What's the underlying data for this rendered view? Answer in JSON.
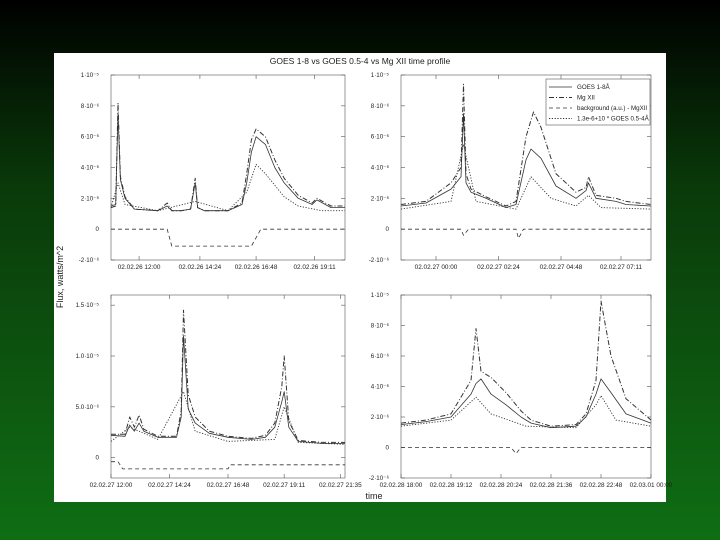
{
  "figure": {
    "title": "GOES 1-8 vs GOES 0.5-4 vs Mg XII time profile",
    "ylabel": "Flux, watts/m^2",
    "xlabel": "time"
  },
  "legend": {
    "entries": [
      {
        "label": "GOES 1-8Å",
        "style": "solid"
      },
      {
        "label": "Mg XII",
        "style": "dashdot"
      },
      {
        "label": "background (a.u.) - MgXII",
        "style": "dashed"
      },
      {
        "label": "1.3e-6+10 * GOES 0.5-4Å",
        "style": "dotted"
      }
    ]
  },
  "colors": {
    "line": "#333333",
    "axis": "#555555",
    "background_top": "#000000",
    "background_bottom": "#0f6e14"
  },
  "chart_data": [
    {
      "type": "line",
      "panel": "top-left",
      "ylim": [
        -2e-06,
        1e-05
      ],
      "ytick_labels": [
        "1·10⁻⁵",
        "8·10⁻⁶",
        "6·10⁻⁶",
        "4·10⁻⁶",
        "2·10⁻⁶",
        "0",
        "-2·10⁻⁶"
      ],
      "ytick_values": [
        1e-05,
        8e-06,
        6e-06,
        4e-06,
        2e-06,
        0,
        -2e-06
      ],
      "xlim": [
        0,
        1
      ],
      "xtick_labels": [
        "02.02.26 12:00",
        "02.02.26 14:24",
        "02.02.26 16:48",
        "02.02.26 19:11"
      ],
      "xtick_values": [
        0.12,
        0.38,
        0.62,
        0.87
      ],
      "series": [
        {
          "style": "solid",
          "x": [
            0,
            0.02,
            0.03,
            0.04,
            0.06,
            0.1,
            0.2,
            0.24,
            0.26,
            0.3,
            0.34,
            0.36,
            0.37,
            0.4,
            0.5,
            0.56,
            0.58,
            0.6,
            0.62,
            0.66,
            0.7,
            0.74,
            0.8,
            0.86,
            0.88,
            0.94,
            1.0
          ],
          "y": [
            1.5e-06,
            1.6e-06,
            7.5e-06,
            3.2e-06,
            2e-06,
            1.3e-06,
            1.2e-06,
            1.5e-06,
            1.2e-06,
            1.2e-06,
            1.3e-06,
            3e-06,
            1.4e-06,
            1.2e-06,
            1.2e-06,
            1.6e-06,
            3e-06,
            5e-06,
            6e-06,
            5.5e-06,
            4e-06,
            3e-06,
            2e-06,
            1.6e-06,
            1.9e-06,
            1.4e-06,
            1.4e-06
          ]
        },
        {
          "style": "dashdot",
          "x": [
            0,
            0.02,
            0.03,
            0.04,
            0.06,
            0.1,
            0.2,
            0.24,
            0.26,
            0.3,
            0.34,
            0.36,
            0.37,
            0.4,
            0.5,
            0.56,
            0.58,
            0.6,
            0.62,
            0.66,
            0.7,
            0.74,
            0.8,
            0.86,
            0.88,
            0.94,
            1.0
          ],
          "y": [
            1.4e-06,
            1.5e-06,
            8.2e-06,
            3.4e-06,
            2.1e-06,
            1.3e-06,
            1.2e-06,
            1.7e-06,
            1.2e-06,
            1.2e-06,
            1.3e-06,
            3.3e-06,
            1.4e-06,
            1.2e-06,
            1.2e-06,
            1.7e-06,
            3.6e-06,
            5.8e-06,
            6.5e-06,
            6e-06,
            4.5e-06,
            3.3e-06,
            2.2e-06,
            1.7e-06,
            2e-06,
            1.5e-06,
            1.5e-06
          ]
        },
        {
          "style": "dotted",
          "x": [
            0,
            0.03,
            0.06,
            0.2,
            0.36,
            0.5,
            0.58,
            0.62,
            0.66,
            0.74,
            0.8,
            0.9,
            1.0
          ],
          "y": [
            1.4e-06,
            3e-06,
            1.6e-06,
            1.2e-06,
            1.8e-06,
            1.2e-06,
            2.4e-06,
            4.2e-06,
            3.6e-06,
            2.1e-06,
            1.5e-06,
            1.2e-06,
            1.2e-06
          ]
        },
        {
          "style": "dashed",
          "x": [
            0,
            0.24,
            0.26,
            0.6,
            0.64,
            1.0
          ],
          "y": [
            0,
            0,
            -1.1e-06,
            -1.1e-06,
            0,
            0
          ]
        }
      ]
    },
    {
      "type": "line",
      "panel": "top-right",
      "ylim": [
        -2e-06,
        1e-05
      ],
      "ytick_labels": [
        "1·10⁻⁵",
        "8·10⁻⁶",
        "6·10⁻⁶",
        "4·10⁻⁶",
        "2·10⁻⁶",
        "0",
        "-2·10⁻⁶"
      ],
      "ytick_values": [
        1e-05,
        8e-06,
        6e-06,
        4e-06,
        2e-06,
        0,
        -2e-06
      ],
      "xlim": [
        0,
        1
      ],
      "xtick_labels": [
        "02.02.27 00:00",
        "02.02.27 02:24",
        "02.02.27 04:48",
        "02.02.27 07:11"
      ],
      "xtick_values": [
        0.14,
        0.39,
        0.64,
        0.88
      ],
      "series": [
        {
          "style": "solid",
          "x": [
            0,
            0.1,
            0.2,
            0.24,
            0.25,
            0.26,
            0.28,
            0.34,
            0.42,
            0.46,
            0.5,
            0.52,
            0.56,
            0.62,
            0.7,
            0.74,
            0.75,
            0.78,
            0.86,
            0.9,
            1.0
          ],
          "y": [
            1.5e-06,
            1.7e-06,
            2.6e-06,
            3.4e-06,
            7.5e-06,
            3e-06,
            2.4e-06,
            2e-06,
            1.4e-06,
            1.6e-06,
            4.5e-06,
            5.2e-06,
            4.6e-06,
            2.8e-06,
            2e-06,
            2.5e-06,
            3e-06,
            2e-06,
            1.8e-06,
            1.6e-06,
            1.5e-06
          ]
        },
        {
          "style": "dashdot",
          "x": [
            0,
            0.1,
            0.2,
            0.24,
            0.25,
            0.26,
            0.28,
            0.34,
            0.42,
            0.46,
            0.5,
            0.53,
            0.56,
            0.62,
            0.7,
            0.74,
            0.75,
            0.78,
            0.86,
            0.9,
            1.0
          ],
          "y": [
            1.6e-06,
            1.8e-06,
            3e-06,
            4e-06,
            9.4e-06,
            3.6e-06,
            2.6e-06,
            2.1e-06,
            1.5e-06,
            1.8e-06,
            6e-06,
            7.6e-06,
            6.6e-06,
            3.6e-06,
            2.4e-06,
            2.7e-06,
            3.4e-06,
            2.2e-06,
            2e-06,
            1.8e-06,
            1.6e-06
          ]
        },
        {
          "style": "dotted",
          "x": [
            0,
            0.2,
            0.25,
            0.3,
            0.46,
            0.52,
            0.6,
            0.7,
            0.75,
            0.8,
            1.0
          ],
          "y": [
            1.3e-06,
            1.8e-06,
            5.5e-06,
            1.8e-06,
            1.3e-06,
            3.4e-06,
            2e-06,
            1.5e-06,
            2.2e-06,
            1.4e-06,
            1.3e-06
          ]
        },
        {
          "style": "dashed",
          "x": [
            0,
            0.24,
            0.25,
            0.27,
            0.46,
            0.47,
            0.49,
            1.0
          ],
          "y": [
            0,
            0,
            -4e-07,
            0,
            0,
            -6e-07,
            0,
            0
          ]
        }
      ]
    },
    {
      "type": "line",
      "panel": "bottom-left",
      "ylim": [
        -2e-06,
        1.6e-05
      ],
      "ytick_labels": [
        "1.5·10⁻⁵",
        "1.0·10⁻⁵",
        "5.0·10⁻⁶",
        "0"
      ],
      "ytick_values": [
        1.5e-05,
        1e-05,
        5e-06,
        0
      ],
      "xlim": [
        0,
        1
      ],
      "xtick_labels": [
        "02.02.27 12:00",
        "02.02.27 14:24",
        "02.02.27 16:48",
        "02.02.27 19:11",
        "02.02.27 21:35"
      ],
      "xtick_values": [
        0.0,
        0.25,
        0.5,
        0.74,
        0.98
      ],
      "series": [
        {
          "style": "solid",
          "x": [
            0,
            0.06,
            0.08,
            0.1,
            0.12,
            0.14,
            0.2,
            0.28,
            0.3,
            0.31,
            0.33,
            0.36,
            0.42,
            0.5,
            0.6,
            0.66,
            0.7,
            0.73,
            0.74,
            0.76,
            0.8,
            0.9,
            1.0
          ],
          "y": [
            2.2e-06,
            2.1e-06,
            3.2e-06,
            2.6e-06,
            3.4e-06,
            2.6e-06,
            2e-06,
            2e-06,
            4e-06,
            1.2e-05,
            4.8e-06,
            3.4e-06,
            2.4e-06,
            2e-06,
            1.8e-06,
            2e-06,
            3e-06,
            5.5e-06,
            6.5e-06,
            3e-06,
            1.6e-06,
            1.4e-06,
            1.4e-06
          ]
        },
        {
          "style": "dashdot",
          "x": [
            0,
            0.06,
            0.08,
            0.1,
            0.12,
            0.14,
            0.2,
            0.28,
            0.3,
            0.31,
            0.33,
            0.36,
            0.42,
            0.5,
            0.6,
            0.66,
            0.7,
            0.73,
            0.74,
            0.76,
            0.8,
            0.9,
            1.0
          ],
          "y": [
            2.3e-06,
            2.3e-06,
            4e-06,
            3e-06,
            4.2e-06,
            2.8e-06,
            2.1e-06,
            2.1e-06,
            4.6e-06,
            1.45e-05,
            6.2e-06,
            4e-06,
            2.6e-06,
            2.1e-06,
            1.9e-06,
            2.2e-06,
            3.4e-06,
            7e-06,
            1e-05,
            3.6e-06,
            1.7e-06,
            1.5e-06,
            1.5e-06
          ]
        },
        {
          "style": "dotted",
          "x": [
            0,
            0.08,
            0.12,
            0.2,
            0.31,
            0.36,
            0.5,
            0.7,
            0.74,
            0.8,
            1.0
          ],
          "y": [
            1.6e-06,
            3e-06,
            2.6e-06,
            1.8e-06,
            6.5e-06,
            2.6e-06,
            1.6e-06,
            1.8e-06,
            5e-06,
            1.5e-06,
            1.3e-06
          ]
        },
        {
          "style": "dashed",
          "x": [
            0,
            0.03,
            0.05,
            0.5,
            0.51,
            1.0
          ],
          "y": [
            -4e-07,
            -4e-07,
            -1.1e-06,
            -1.1e-06,
            -7e-07,
            -7e-07
          ]
        }
      ]
    },
    {
      "type": "line",
      "panel": "bottom-right",
      "ylim": [
        -2e-06,
        1e-05
      ],
      "ytick_labels": [
        "1·10⁻⁵",
        "8·10⁻⁶",
        "6·10⁻⁶",
        "4·10⁻⁶",
        "2·10⁻⁶",
        "0",
        "-2·10⁻⁶"
      ],
      "ytick_values": [
        1e-05,
        8e-06,
        6e-06,
        4e-06,
        2e-06,
        0,
        -2e-06
      ],
      "xlim": [
        0,
        1
      ],
      "xtick_labels": [
        "02.02.28 18:00",
        "02.02.28 19:12",
        "02.02.28 20:24",
        "02.02.28 21:36",
        "02.02.28 22:48",
        "02.03.01 00:00"
      ],
      "xtick_values": [
        0.0,
        0.2,
        0.4,
        0.6,
        0.8,
        1.0
      ],
      "series": [
        {
          "style": "solid",
          "x": [
            0,
            0.1,
            0.2,
            0.28,
            0.3,
            0.32,
            0.36,
            0.42,
            0.48,
            0.52,
            0.6,
            0.7,
            0.74,
            0.78,
            0.8,
            0.84,
            0.9,
            1.0
          ],
          "y": [
            1.5e-06,
            1.7e-06,
            2e-06,
            3.5e-06,
            4.2e-06,
            4.5e-06,
            3.5e-06,
            2.8e-06,
            2e-06,
            1.6e-06,
            1.3e-06,
            1.4e-06,
            2e-06,
            3.5e-06,
            4.5e-06,
            3.6e-06,
            2.2e-06,
            1.6e-06
          ]
        },
        {
          "style": "dashdot",
          "x": [
            0,
            0.1,
            0.2,
            0.28,
            0.3,
            0.32,
            0.36,
            0.42,
            0.48,
            0.52,
            0.6,
            0.7,
            0.74,
            0.78,
            0.8,
            0.84,
            0.9,
            1.0
          ],
          "y": [
            1.6e-06,
            1.8e-06,
            2.2e-06,
            4.4e-06,
            7.8e-06,
            5e-06,
            4.6e-06,
            3.6e-06,
            2.4e-06,
            1.8e-06,
            1.4e-06,
            1.5e-06,
            2.2e-06,
            4.4e-06,
            9.6e-06,
            6e-06,
            3.2e-06,
            1.8e-06
          ]
        },
        {
          "style": "dotted",
          "x": [
            0,
            0.2,
            0.3,
            0.36,
            0.5,
            0.7,
            0.78,
            0.8,
            0.86,
            1.0
          ],
          "y": [
            1.4e-06,
            1.8e-06,
            3.3e-06,
            2.2e-06,
            1.4e-06,
            1.3e-06,
            2.8e-06,
            3.4e-06,
            1.8e-06,
            1.4e-06
          ]
        },
        {
          "style": "dashed",
          "x": [
            0,
            0.44,
            0.46,
            0.48,
            1.0
          ],
          "y": [
            0,
            0,
            -4e-07,
            0,
            0
          ]
        }
      ]
    }
  ]
}
